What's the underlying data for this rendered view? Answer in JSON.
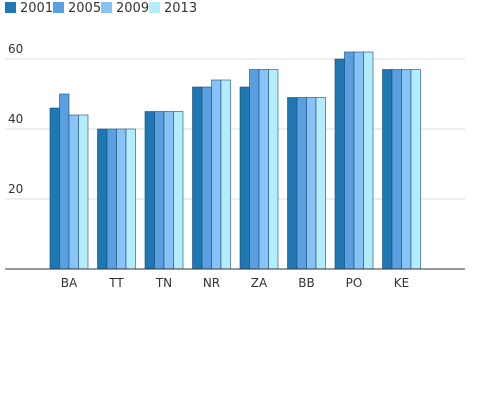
{
  "chart_data": {
    "type": "bar",
    "categories": [
      "BA",
      "TT",
      "TN",
      "NR",
      "ZA",
      "BB",
      "PO",
      "KE"
    ],
    "series": [
      {
        "name": "2001",
        "color": "#1f77b4",
        "values": [
          46,
          40,
          45,
          52,
          52,
          49,
          60,
          57
        ]
      },
      {
        "name": "2005",
        "color": "#5aa0e0",
        "values": [
          50,
          40,
          45,
          52,
          57,
          49,
          62,
          57
        ]
      },
      {
        "name": "2009",
        "color": "#88c2f7",
        "values": [
          44,
          40,
          45,
          54,
          57,
          49,
          62,
          57
        ]
      },
      {
        "name": "2013",
        "color": "#b3ecfb",
        "values": [
          44,
          40,
          45,
          54,
          57,
          49,
          62,
          57
        ]
      }
    ],
    "y_ticks": [
      "20",
      "40",
      "60"
    ],
    "ylim": [
      0,
      60
    ],
    "grid": true,
    "legend_position": "top-left",
    "title": "",
    "xlabel": "",
    "ylabel": ""
  }
}
